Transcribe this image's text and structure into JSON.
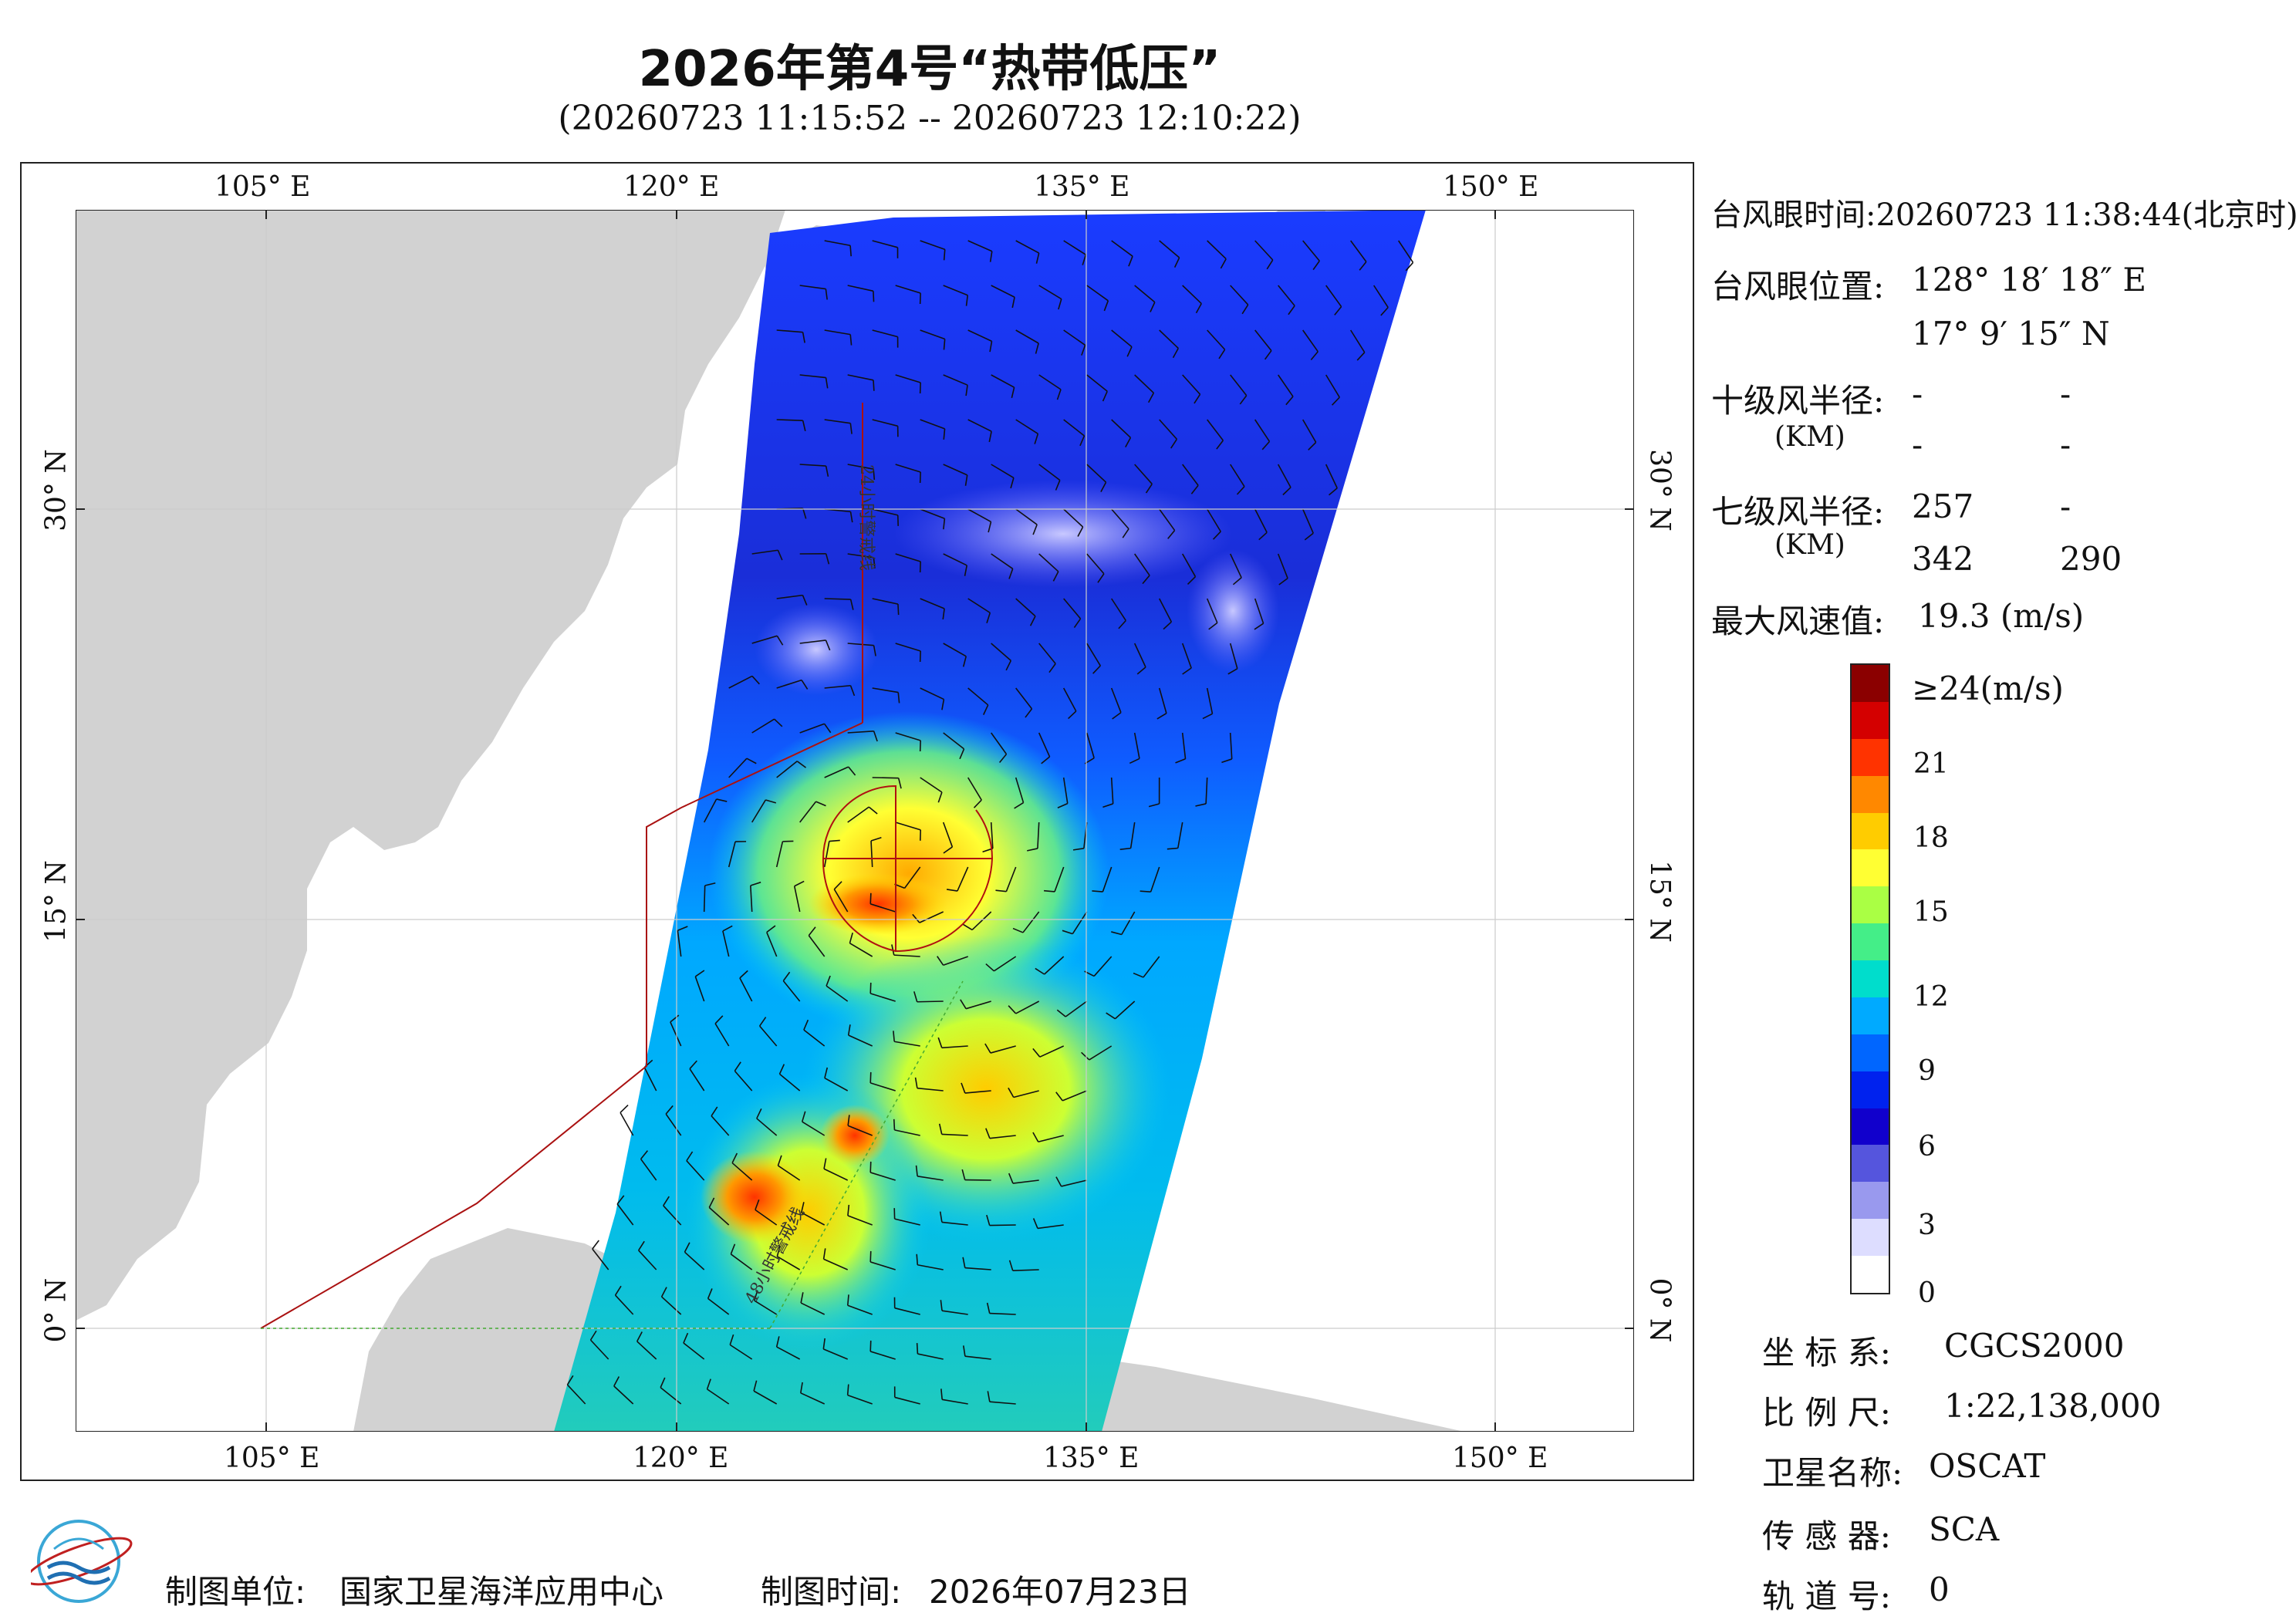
{
  "header": {
    "title": "2026年第4号“热带低压”",
    "subtitle": "(20260723 11:15:52 -- 20260723 12:10:22)"
  },
  "map": {
    "lon_labels": [
      "105° E",
      "120° E",
      "135° E",
      "150° E"
    ],
    "lat_labels": [
      "30° N",
      "15° N",
      "0° N"
    ],
    "line_labels": [
      "24小时警戒线",
      "48小时警戒线"
    ],
    "extent": {
      "lon_min": 98,
      "lon_max": 155,
      "lat_min": -4,
      "lat_max": 41
    },
    "eye": {
      "lon": 128.305,
      "lat": 17.154
    },
    "colors": {
      "land": "#d2d2d2",
      "sea": "#ffffff",
      "warning_line": "#aa1111",
      "eye_marker": "#b01010"
    }
  },
  "info": {
    "eye_time_label": "台风眼时间:",
    "eye_time_value": "20260723 11:38:44(北京时)",
    "eye_pos_label": "台风眼位置:",
    "eye_lon": "128° 18′ 18″ E",
    "eye_lat": "17° 9′ 15″ N",
    "r10_label": "十级风半径:",
    "r10_unit": "(KM)",
    "r10_values": [
      "-",
      "-",
      "-",
      "-"
    ],
    "r7_label": "七级风半径:",
    "r7_unit": "(KM)",
    "r7_values": [
      "257",
      "-",
      "342",
      "290"
    ],
    "max_wind_label": "最大风速值:",
    "max_wind_value": "19.3 (m/s)"
  },
  "colorbar": {
    "top_label": "≥24(m/s)",
    "ticks": [
      "21",
      "18",
      "15",
      "12",
      "9",
      "6",
      "3",
      "0"
    ],
    "colors": [
      "#8b0000",
      "#d40000",
      "#ff3300",
      "#ff8800",
      "#ffcc00",
      "#ffff33",
      "#aaff44",
      "#44ee88",
      "#00ddcc",
      "#00aaff",
      "#0066ff",
      "#0022ee",
      "#1100cc",
      "#5555dd",
      "#9999ee",
      "#ddddff",
      "#ffffff"
    ]
  },
  "meta": {
    "crs_label": "坐 标 系:",
    "crs_value": "CGCS2000",
    "scale_label": "比 例 尺:",
    "scale_value": "1:22,138,000",
    "sat_label": "卫星名称:",
    "sat_value": "OSCAT",
    "sensor_label": "传 感 器:",
    "sensor_value": "SCA",
    "orbit_label": "轨 道 号:",
    "orbit_value": "0"
  },
  "footer": {
    "maker_label": "制图单位:",
    "maker_value": "国家卫星海洋应用中心",
    "time_label": "制图时间:",
    "time_value": "2026年07月23日"
  }
}
